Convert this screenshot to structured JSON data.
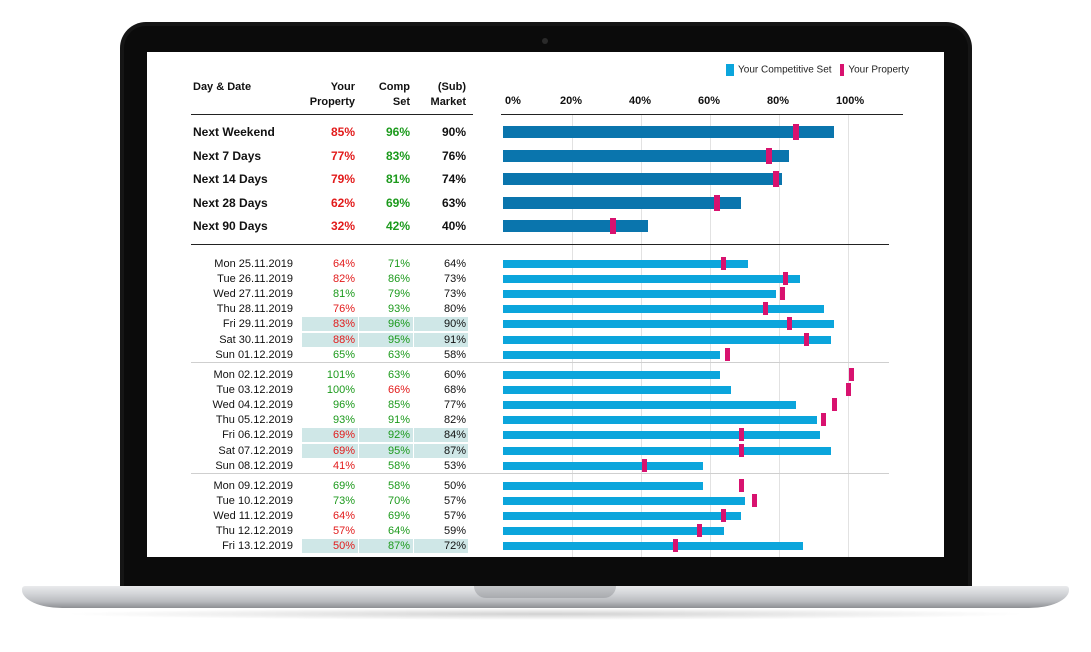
{
  "legend": {
    "comp_set": "Your Competitive Set",
    "property": "Your Property"
  },
  "colors": {
    "comp_bar_summary": "#0a75ad",
    "comp_bar_daily": "#0ba5dc",
    "property_marker": "#d8126f",
    "good": "#1c9a1c",
    "bad": "#e21b1b",
    "weekend_highlight": "#cfe7e7"
  },
  "headers": {
    "day_date": "Day & Date",
    "your_property": [
      "Your",
      "Property"
    ],
    "comp_set": [
      "Comp",
      "Set"
    ],
    "sub_market": [
      "(Sub)",
      "Market"
    ]
  },
  "axis_ticks": [
    "0%",
    "20%",
    "40%",
    "60%",
    "80%",
    "100%"
  ],
  "summary": [
    {
      "label": "Next Weekend",
      "property": "85%",
      "comp": "96%",
      "market": "90%",
      "property_color": "red",
      "comp_color": "green",
      "prop_value": 85,
      "comp_value": 96
    },
    {
      "label": "Next 7 Days",
      "property": "77%",
      "comp": "83%",
      "market": "76%",
      "property_color": "red",
      "comp_color": "green",
      "prop_value": 77,
      "comp_value": 83
    },
    {
      "label": "Next 14 Days",
      "property": "79%",
      "comp": "81%",
      "market": "74%",
      "property_color": "red",
      "comp_color": "green",
      "prop_value": 79,
      "comp_value": 81
    },
    {
      "label": "Next 28 Days",
      "property": "62%",
      "comp": "69%",
      "market": "63%",
      "property_color": "red",
      "comp_color": "green",
      "prop_value": 62,
      "comp_value": 69
    },
    {
      "label": "Next 90 Days",
      "property": "32%",
      "comp": "42%",
      "market": "40%",
      "property_color": "red",
      "comp_color": "green",
      "prop_value": 32,
      "comp_value": 42
    }
  ],
  "daily_groups": [
    [
      {
        "date": "Mon 25.11.2019",
        "property": "64%",
        "comp": "71%",
        "market": "64%",
        "property_color": "red",
        "comp_color": "green",
        "weekend": false,
        "prop_value": 64,
        "comp_value": 71
      },
      {
        "date": "Tue 26.11.2019",
        "property": "82%",
        "comp": "86%",
        "market": "73%",
        "property_color": "red",
        "comp_color": "green",
        "weekend": false,
        "prop_value": 82,
        "comp_value": 86
      },
      {
        "date": "Wed 27.11.2019",
        "property": "81%",
        "comp": "79%",
        "market": "73%",
        "property_color": "green",
        "comp_color": "green",
        "weekend": false,
        "prop_value": 81,
        "comp_value": 79
      },
      {
        "date": "Thu 28.11.2019",
        "property": "76%",
        "comp": "93%",
        "market": "80%",
        "property_color": "red",
        "comp_color": "green",
        "weekend": false,
        "prop_value": 76,
        "comp_value": 93
      },
      {
        "date": "Fri 29.11.2019",
        "property": "83%",
        "comp": "96%",
        "market": "90%",
        "property_color": "red",
        "comp_color": "green",
        "weekend": true,
        "prop_value": 83,
        "comp_value": 96
      },
      {
        "date": "Sat 30.11.2019",
        "property": "88%",
        "comp": "95%",
        "market": "91%",
        "property_color": "red",
        "comp_color": "green",
        "weekend": true,
        "prop_value": 88,
        "comp_value": 95
      },
      {
        "date": "Sun 01.12.2019",
        "property": "65%",
        "comp": "63%",
        "market": "58%",
        "property_color": "green",
        "comp_color": "green",
        "weekend": false,
        "prop_value": 65,
        "comp_value": 63
      }
    ],
    [
      {
        "date": "Mon 02.12.2019",
        "property": "101%",
        "comp": "63%",
        "market": "60%",
        "property_color": "green",
        "comp_color": "green",
        "weekend": false,
        "prop_value": 101,
        "comp_value": 63
      },
      {
        "date": "Tue 03.12.2019",
        "property": "100%",
        "comp": "66%",
        "market": "68%",
        "property_color": "green",
        "comp_color": "red",
        "weekend": false,
        "prop_value": 100,
        "comp_value": 66
      },
      {
        "date": "Wed 04.12.2019",
        "property": "96%",
        "comp": "85%",
        "market": "77%",
        "property_color": "green",
        "comp_color": "green",
        "weekend": false,
        "prop_value": 96,
        "comp_value": 85
      },
      {
        "date": "Thu 05.12.2019",
        "property": "93%",
        "comp": "91%",
        "market": "82%",
        "property_color": "green",
        "comp_color": "green",
        "weekend": false,
        "prop_value": 93,
        "comp_value": 91
      },
      {
        "date": "Fri 06.12.2019",
        "property": "69%",
        "comp": "92%",
        "market": "84%",
        "property_color": "red",
        "comp_color": "green",
        "weekend": true,
        "prop_value": 69,
        "comp_value": 92
      },
      {
        "date": "Sat 07.12.2019",
        "property": "69%",
        "comp": "95%",
        "market": "87%",
        "property_color": "red",
        "comp_color": "green",
        "weekend": true,
        "prop_value": 69,
        "comp_value": 95
      },
      {
        "date": "Sun 08.12.2019",
        "property": "41%",
        "comp": "58%",
        "market": "53%",
        "property_color": "red",
        "comp_color": "green",
        "weekend": false,
        "prop_value": 41,
        "comp_value": 58
      }
    ],
    [
      {
        "date": "Mon 09.12.2019",
        "property": "69%",
        "comp": "58%",
        "market": "50%",
        "property_color": "green",
        "comp_color": "green",
        "weekend": false,
        "prop_value": 69,
        "comp_value": 58
      },
      {
        "date": "Tue 10.12.2019",
        "property": "73%",
        "comp": "70%",
        "market": "57%",
        "property_color": "green",
        "comp_color": "green",
        "weekend": false,
        "prop_value": 73,
        "comp_value": 70
      },
      {
        "date": "Wed 11.12.2019",
        "property": "64%",
        "comp": "69%",
        "market": "57%",
        "property_color": "red",
        "comp_color": "green",
        "weekend": false,
        "prop_value": 64,
        "comp_value": 69
      },
      {
        "date": "Thu 12.12.2019",
        "property": "57%",
        "comp": "64%",
        "market": "59%",
        "property_color": "red",
        "comp_color": "green",
        "weekend": false,
        "prop_value": 57,
        "comp_value": 64
      },
      {
        "date": "Fri 13.12.2019",
        "property": "50%",
        "comp": "87%",
        "market": "72%",
        "property_color": "red",
        "comp_color": "green",
        "weekend": true,
        "prop_value": 50,
        "comp_value": 87
      }
    ]
  ]
}
